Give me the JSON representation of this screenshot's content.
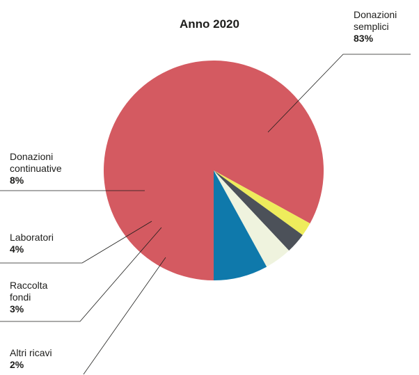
{
  "chart_data": {
    "type": "pie",
    "title": "Anno 2020",
    "start_angle_deg": 180,
    "direction": "clockwise",
    "slices": [
      {
        "label_lines": [
          "Donazioni",
          "semplici"
        ],
        "value": 83,
        "value_label": "83%",
        "color": "#d45a61"
      },
      {
        "label_lines": [
          "Altri ricavi"
        ],
        "value": 2,
        "value_label": "2%",
        "color": "#eeec5c"
      },
      {
        "label_lines": [
          "Raccolta",
          "fondi"
        ],
        "value": 3,
        "value_label": "3%",
        "color": "#4c5159"
      },
      {
        "label_lines": [
          "Laboratori"
        ],
        "value": 4,
        "value_label": "4%",
        "color": "#eff3de"
      },
      {
        "label_lines": [
          "Donazioni",
          "continuative"
        ],
        "value": 8,
        "value_label": "8%",
        "color": "#0f79ab"
      }
    ]
  }
}
